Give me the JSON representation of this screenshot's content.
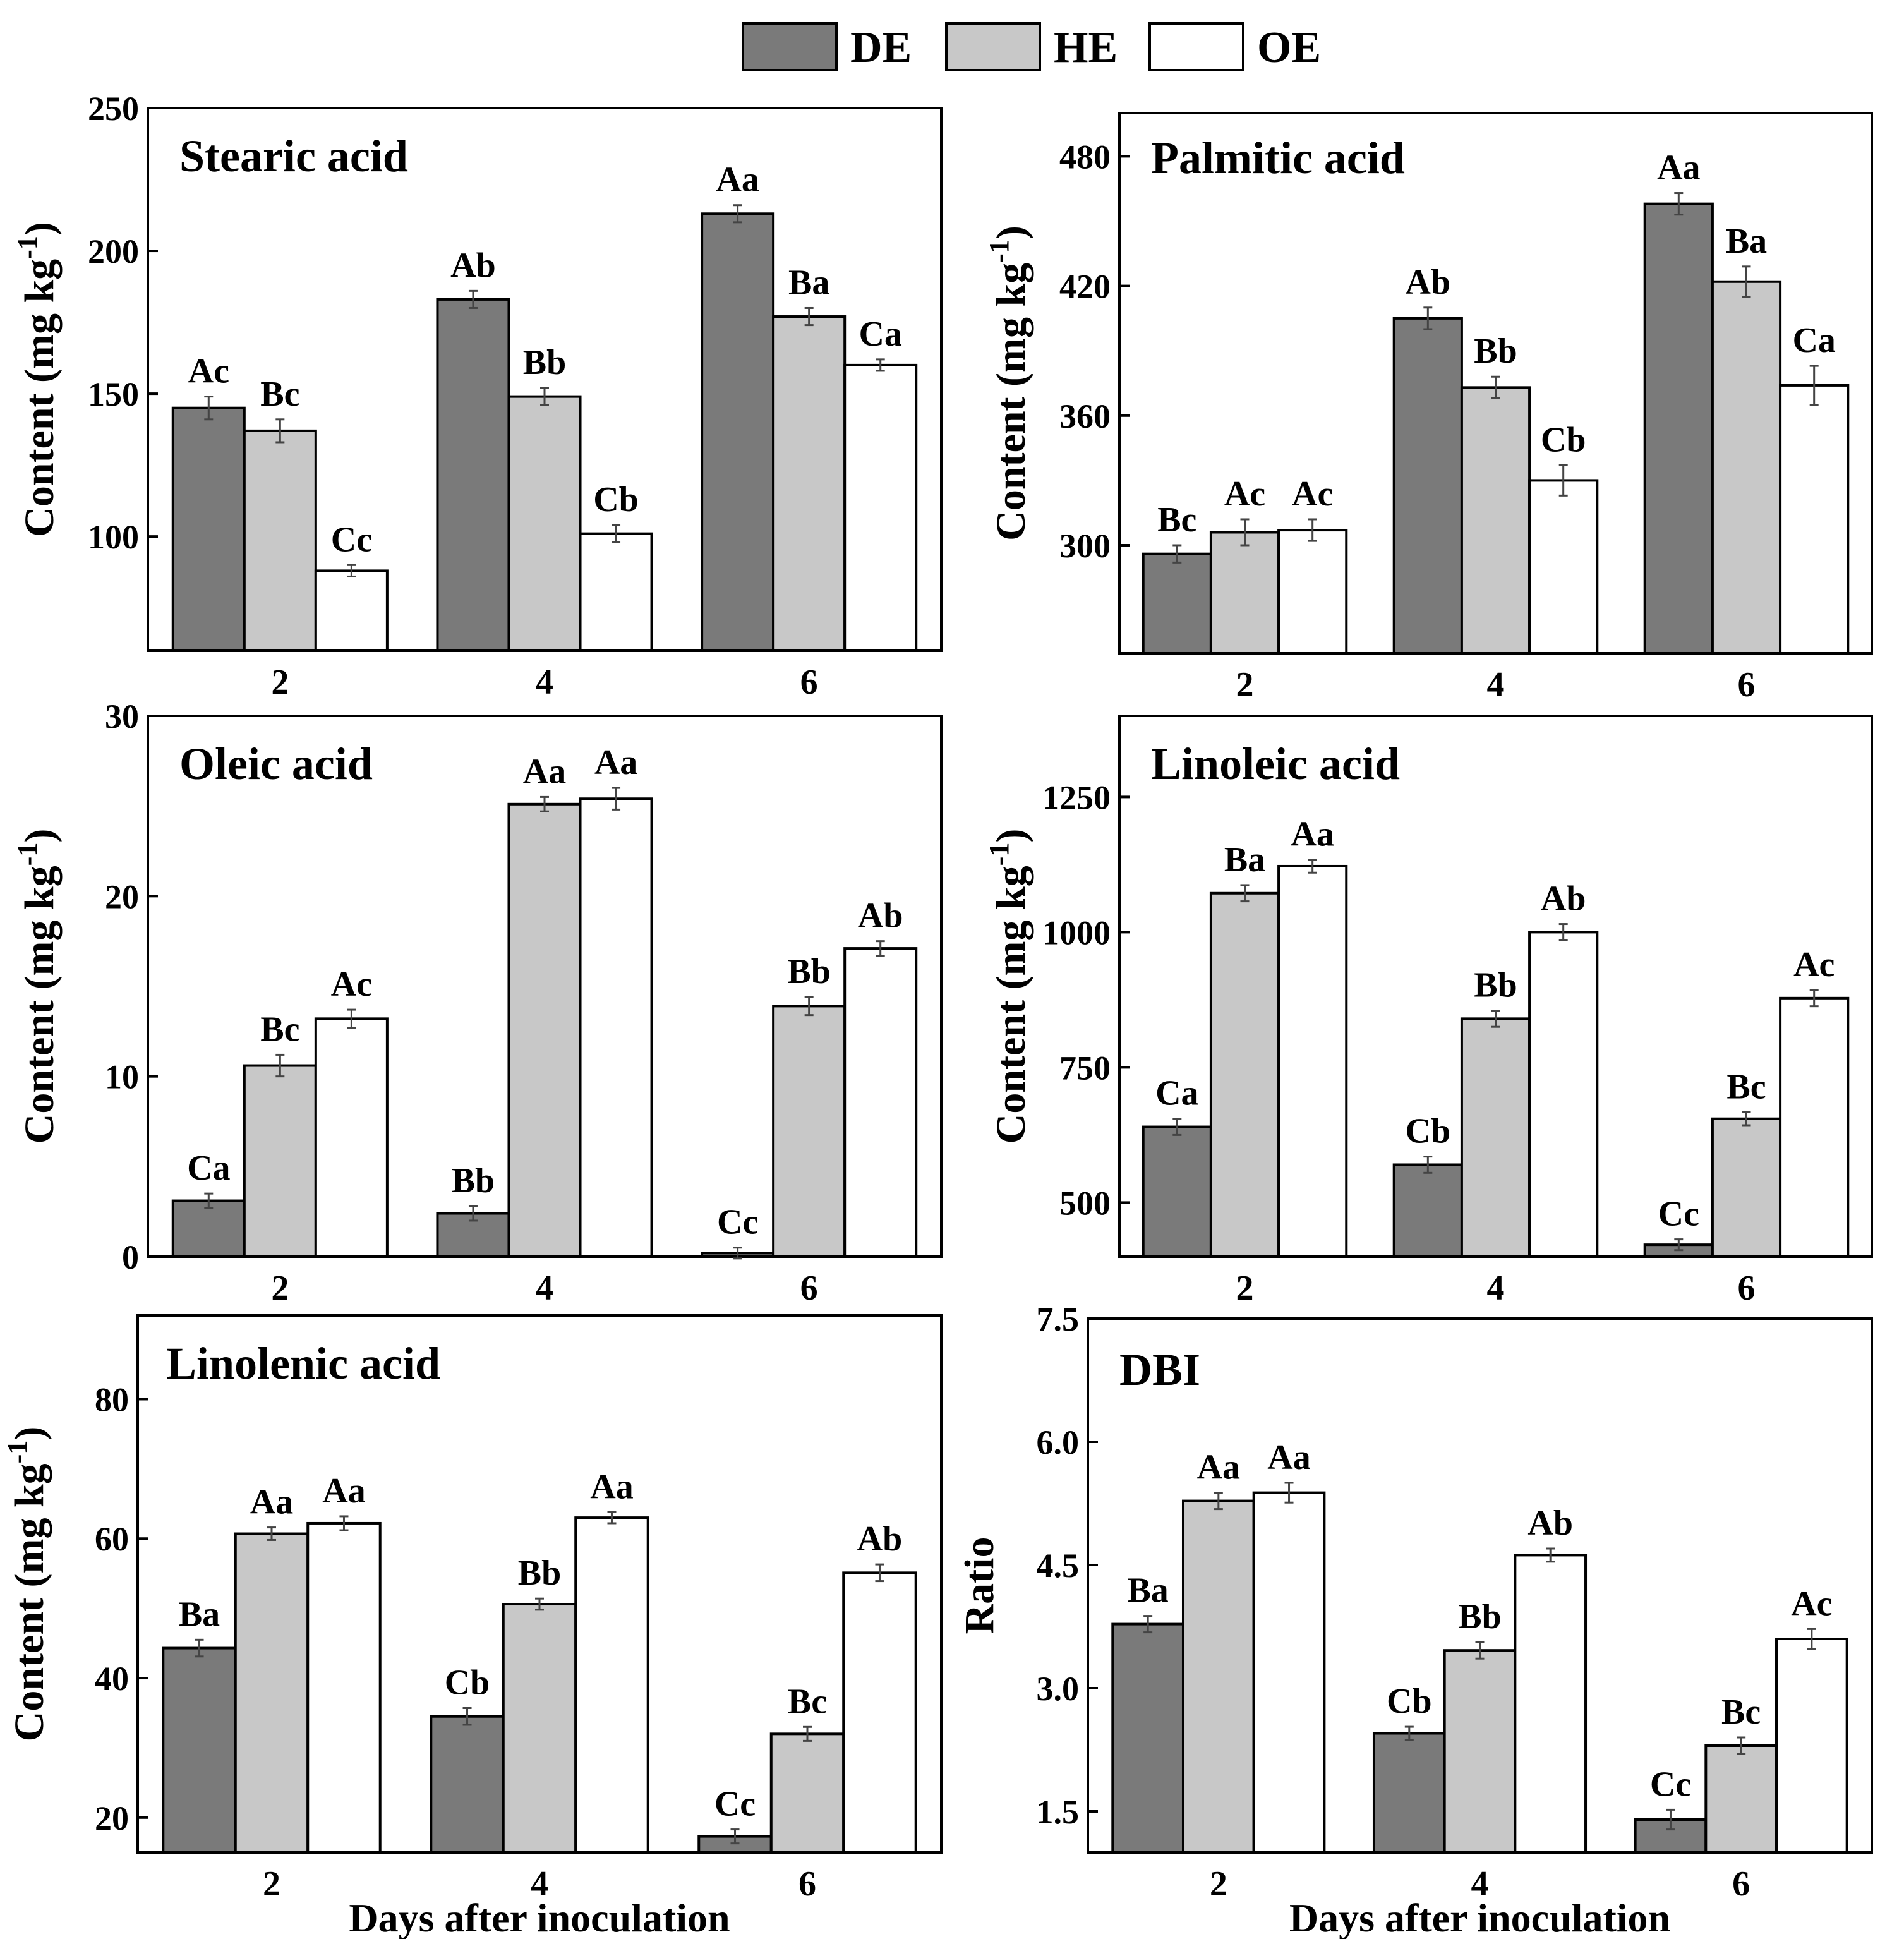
{
  "legend": [
    {
      "name": "DE",
      "color": "#7a7a7a"
    },
    {
      "name": "HE",
      "color": "#c8c8c8"
    },
    {
      "name": "OE",
      "color": "#ffffff"
    }
  ],
  "chart_data": [
    {
      "type": "bar",
      "title": "Stearic acid",
      "xlabel": "",
      "ylabel": "Content (mg kg-1)",
      "categories": [
        "2",
        "4",
        "6"
      ],
      "ylim": [
        60,
        250
      ],
      "yticks": [
        "100",
        "150",
        "200",
        "250"
      ],
      "series": [
        {
          "name": "DE",
          "values": [
            145,
            183,
            213
          ],
          "errors": [
            4,
            3,
            3
          ],
          "labels": [
            "Ac",
            "Ab",
            "Aa"
          ]
        },
        {
          "name": "HE",
          "values": [
            137,
            149,
            177
          ],
          "errors": [
            4,
            3,
            3
          ],
          "labels": [
            "Bc",
            "Bb",
            "Ba"
          ]
        },
        {
          "name": "OE",
          "values": [
            88,
            101,
            160
          ],
          "errors": [
            2,
            3,
            2
          ],
          "labels": [
            "Cc",
            "Cb",
            "Ca"
          ]
        }
      ]
    },
    {
      "type": "bar",
      "title": "Palmitic acid",
      "xlabel": "",
      "ylabel": "Content (mg kg-1)",
      "categories": [
        "2",
        "4",
        "6"
      ],
      "ylim": [
        250,
        500
      ],
      "yticks": [
        "300",
        "360",
        "420",
        "480"
      ],
      "series": [
        {
          "name": "DE",
          "values": [
            296,
            405,
            458
          ],
          "errors": [
            4,
            5,
            5
          ],
          "labels": [
            "Bc",
            "Ab",
            "Aa"
          ]
        },
        {
          "name": "HE",
          "values": [
            306,
            373,
            422
          ],
          "errors": [
            6,
            5,
            7
          ],
          "labels": [
            "Ac",
            "Bb",
            "Ba"
          ]
        },
        {
          "name": "OE",
          "values": [
            307,
            330,
            374
          ],
          "errors": [
            5,
            7,
            9
          ],
          "labels": [
            "Ac",
            "Cb",
            "Ca"
          ]
        }
      ]
    },
    {
      "type": "bar",
      "title": "Oleic acid",
      "xlabel": "",
      "ylabel": "Content (mg kg-1)",
      "categories": [
        "2",
        "4",
        "6"
      ],
      "ylim": [
        0,
        30
      ],
      "yticks": [
        "0",
        "10",
        "20",
        "30"
      ],
      "series": [
        {
          "name": "DE",
          "values": [
            3.1,
            2.4,
            0.2
          ],
          "errors": [
            0.4,
            0.4,
            0.3
          ],
          "labels": [
            "Ca",
            "Bb",
            "Cc"
          ]
        },
        {
          "name": "HE",
          "values": [
            10.6,
            25.1,
            13.9
          ],
          "errors": [
            0.6,
            0.4,
            0.5
          ],
          "labels": [
            "Bc",
            "Aa",
            "Bb"
          ]
        },
        {
          "name": "OE",
          "values": [
            13.2,
            25.4,
            17.1
          ],
          "errors": [
            0.5,
            0.6,
            0.4
          ],
          "labels": [
            "Ac",
            "Aa",
            "Ab"
          ]
        }
      ]
    },
    {
      "type": "bar",
      "title": "Linoleic acid",
      "xlabel": "",
      "ylabel": "Content (mg kg-1)",
      "categories": [
        "2",
        "4",
        "6"
      ],
      "ylim": [
        400,
        1400
      ],
      "yticks": [
        "500",
        "750",
        "1000",
        "1250"
      ],
      "series": [
        {
          "name": "DE",
          "values": [
            640,
            570,
            422
          ],
          "errors": [
            15,
            15,
            10
          ],
          "labels": [
            "Ca",
            "Cb",
            "Cc"
          ]
        },
        {
          "name": "HE",
          "values": [
            1072,
            840,
            655
          ],
          "errors": [
            15,
            15,
            12
          ],
          "labels": [
            "Ba",
            "Bb",
            "Bc"
          ]
        },
        {
          "name": "OE",
          "values": [
            1122,
            1000,
            878
          ],
          "errors": [
            12,
            15,
            15
          ],
          "labels": [
            "Aa",
            "Ab",
            "Ac"
          ]
        }
      ]
    },
    {
      "type": "bar",
      "title": "Linolenic acid",
      "xlabel": "Days after inoculation",
      "ylabel": "Content (mg kg-1)",
      "categories": [
        "2",
        "4",
        "6"
      ],
      "ylim": [
        15,
        92
      ],
      "yticks": [
        "20",
        "40",
        "60",
        "80"
      ],
      "series": [
        {
          "name": "DE",
          "values": [
            44.3,
            34.5,
            17.3
          ],
          "errors": [
            1.2,
            1.2,
            1.0
          ],
          "labels": [
            "Ba",
            "Cb",
            "Cc"
          ]
        },
        {
          "name": "HE",
          "values": [
            60.7,
            50.6,
            32.0
          ],
          "errors": [
            0.9,
            0.8,
            1.0
          ],
          "labels": [
            "Aa",
            "Bb",
            "Bc"
          ]
        },
        {
          "name": "OE",
          "values": [
            62.2,
            63.0,
            55.1
          ],
          "errors": [
            1.0,
            0.8,
            1.2
          ],
          "labels": [
            "Aa",
            "Aa",
            "Ab"
          ]
        }
      ]
    },
    {
      "type": "bar",
      "title": "DBI",
      "xlabel": "Days after inoculation",
      "ylabel": "Ratio",
      "categories": [
        "2",
        "4",
        "6"
      ],
      "ylim": [
        1.0,
        7.5
      ],
      "yticks": [
        "1.5",
        "3.0",
        "4.5",
        "6.0",
        "7.5"
      ],
      "series": [
        {
          "name": "DE",
          "values": [
            3.78,
            2.45,
            1.4
          ],
          "errors": [
            0.1,
            0.08,
            0.12
          ],
          "labels": [
            "Ba",
            "Cb",
            "Cc"
          ]
        },
        {
          "name": "HE",
          "values": [
            5.28,
            3.46,
            2.3
          ],
          "errors": [
            0.1,
            0.1,
            0.1
          ],
          "labels": [
            "Aa",
            "Bb",
            "Bc"
          ]
        },
        {
          "name": "OE",
          "values": [
            5.38,
            4.62,
            3.6
          ],
          "errors": [
            0.12,
            0.08,
            0.12
          ],
          "labels": [
            "Aa",
            "Ab",
            "Ac"
          ]
        }
      ]
    }
  ]
}
